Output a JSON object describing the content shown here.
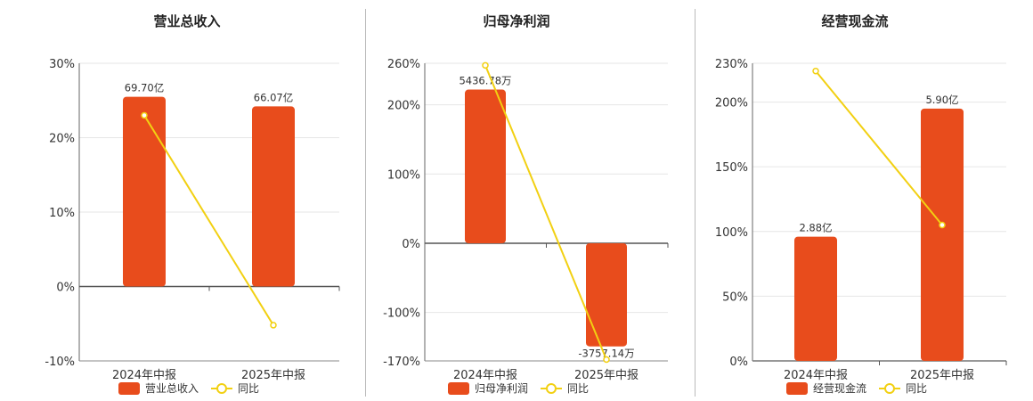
{
  "chart_data": [
    {
      "type": "bar",
      "title": "营业总收入",
      "categories": [
        "2024年中报",
        "2025年中报"
      ],
      "ylim": [
        -10,
        30
      ],
      "ticks": [
        30,
        20,
        10,
        0,
        -10
      ],
      "tick_labels": [
        "30%",
        "20%",
        "10%",
        "0%",
        "-10%"
      ],
      "grid": true,
      "legend_position": "bottom",
      "series": [
        {
          "name": "营业总收入",
          "kind": "bar",
          "values": [
            25.5,
            24.2
          ],
          "labels": [
            "69.70亿",
            "66.07亿"
          ],
          "color": "#e84c1c"
        },
        {
          "name": "同比",
          "kind": "line",
          "values": [
            23.0,
            -5.2
          ],
          "color": "#f2d012"
        }
      ]
    },
    {
      "type": "bar",
      "title": "归母净利润",
      "categories": [
        "2024年中报",
        "2025年中报"
      ],
      "ylim": [
        -170,
        260
      ],
      "ticks": [
        260,
        200,
        100,
        0,
        -100,
        -170
      ],
      "tick_labels": [
        "260%",
        "200%",
        "100%",
        "0%",
        "-100%",
        "-170%"
      ],
      "grid": true,
      "legend_position": "bottom",
      "series": [
        {
          "name": "归母净利润",
          "kind": "bar",
          "values": [
            222,
            -149
          ],
          "labels": [
            "5436.78万",
            "-3757.14万"
          ],
          "color": "#e84c1c"
        },
        {
          "name": "同比",
          "kind": "line",
          "values": [
            257,
            -168
          ],
          "color": "#f2d012"
        }
      ]
    },
    {
      "type": "bar",
      "title": "经营现金流",
      "categories": [
        "2024年中报",
        "2025年中报"
      ],
      "ylim": [
        0,
        230
      ],
      "ticks": [
        230,
        200,
        150,
        100,
        50,
        0
      ],
      "tick_labels": [
        "230%",
        "200%",
        "150%",
        "100%",
        "50%",
        "0%"
      ],
      "grid": true,
      "legend_position": "bottom",
      "series": [
        {
          "name": "经营现金流",
          "kind": "bar",
          "values": [
            96,
            195
          ],
          "labels": [
            "2.88亿",
            "5.90亿"
          ],
          "color": "#e84c1c"
        },
        {
          "name": "同比",
          "kind": "line",
          "values": [
            224,
            105
          ],
          "color": "#f2d012"
        }
      ]
    }
  ]
}
